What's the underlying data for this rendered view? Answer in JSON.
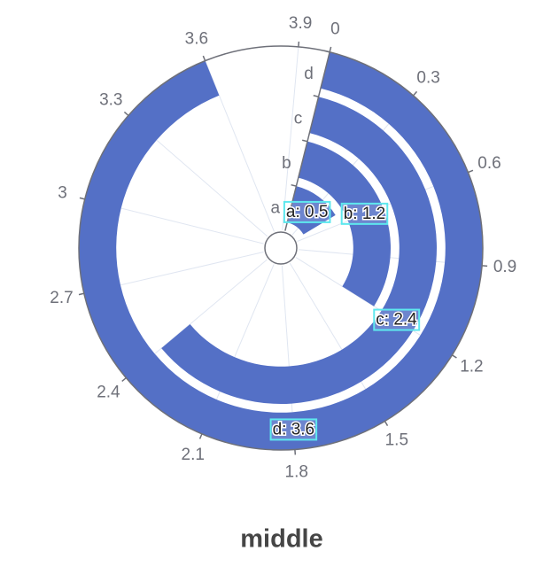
{
  "chart_data": {
    "type": "polar_bar",
    "title": "middle",
    "categories": [
      "a",
      "b",
      "c",
      "d"
    ],
    "values": [
      0.5,
      1.2,
      2.4,
      3.6
    ],
    "value_labels": [
      "a: 0.5",
      "b: 1.2",
      "c: 2.4",
      "d: 3.6"
    ],
    "color": "#5470c6",
    "alim": [
      0,
      4
    ],
    "aticks": [
      0,
      0.3,
      0.6,
      0.9,
      1.2,
      1.5,
      1.8,
      2.1,
      2.4,
      2.7,
      3,
      3.3,
      3.6,
      3.9
    ]
  }
}
